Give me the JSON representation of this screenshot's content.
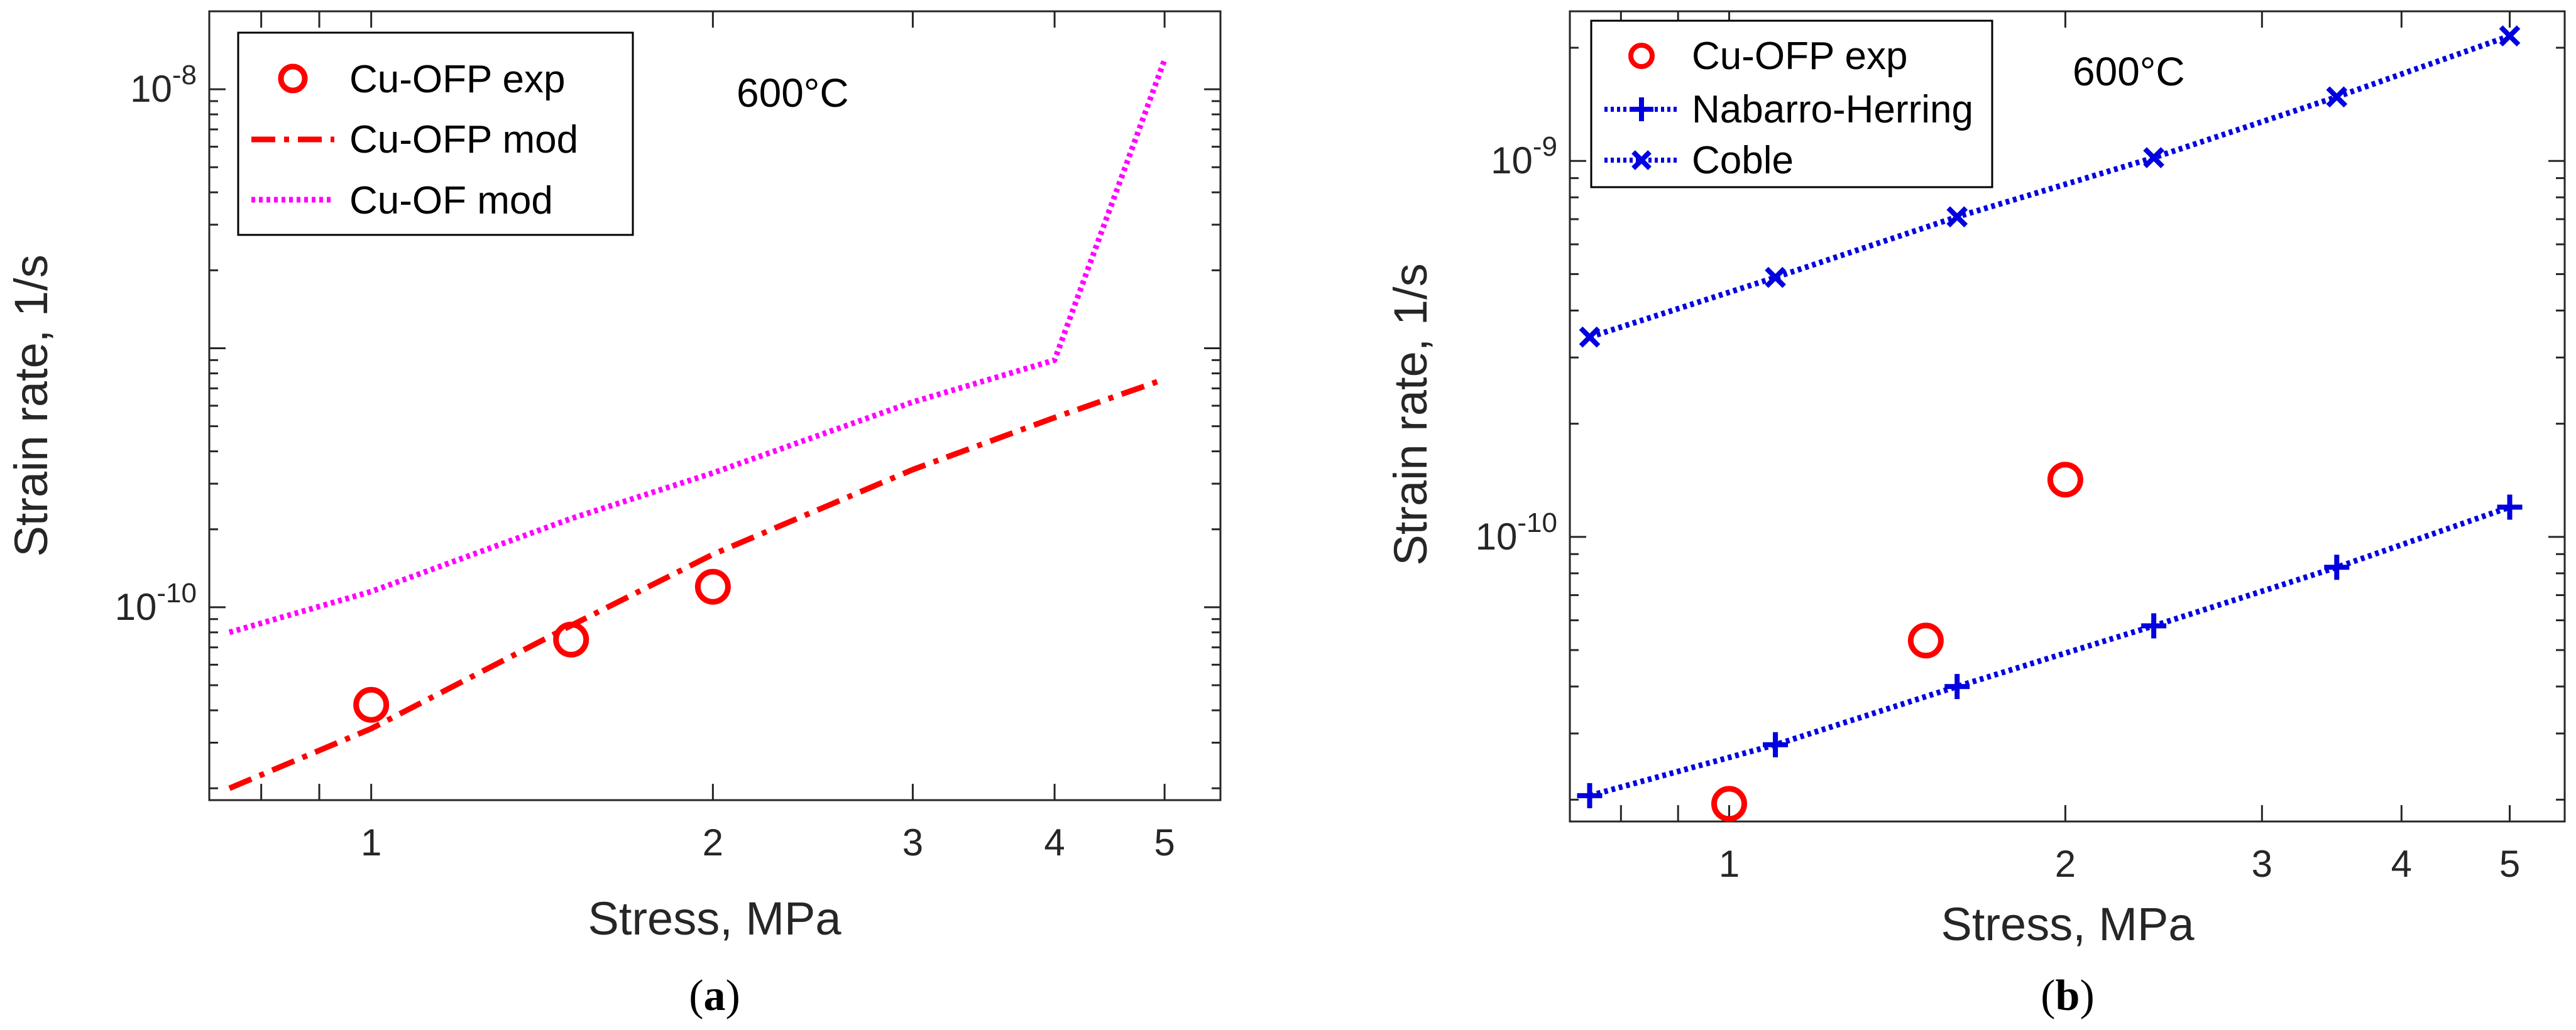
{
  "chart_data": [
    {
      "id": "a",
      "type": "line",
      "panel_label": "a",
      "xscale": "log",
      "yscale": "log",
      "xlim": [
        0.72,
        5.6
      ],
      "ylim": [
        1.8e-11,
        2e-08
      ],
      "xticks": [
        1,
        2,
        3,
        4,
        5
      ],
      "xtick_labels": [
        "1",
        "2",
        "3",
        "4",
        "5"
      ],
      "yticks": [
        1e-10,
        1e-08
      ],
      "ytick_labels": [
        {
          "base": "10",
          "exp": "-10"
        },
        {
          "base": "10",
          "exp": "-8"
        }
      ],
      "xlabel": "Stress, MPa",
      "ylabel": "Strain rate, 1/s",
      "annotation": "600°C",
      "legend_position": "top-left",
      "series": [
        {
          "name": "Cu-OFP exp",
          "style": "circle",
          "color": "#ff0000",
          "x": [
            1.0,
            1.5,
            2.0
          ],
          "y": [
            4.2e-11,
            7.5e-11,
            1.2e-10
          ]
        },
        {
          "name": "Cu-OFP mod",
          "style": "dashdot",
          "color": "#ff0000",
          "x": [
            0.75,
            1.0,
            1.5,
            2.0,
            3.0,
            4.0,
            5.0
          ],
          "y": [
            2e-11,
            3.4e-11,
            8.5e-11,
            1.6e-10,
            3.4e-10,
            5.4e-10,
            7.6e-10
          ]
        },
        {
          "name": "Cu-OF mod",
          "style": "dotted",
          "color": "#ff00ff",
          "x": [
            0.75,
            1.0,
            1.5,
            2.0,
            3.0,
            4.0,
            5.0
          ],
          "y": [
            8e-11,
            1.15e-10,
            2.2e-10,
            3.3e-10,
            6.2e-10,
            9e-10,
            1.3e-08
          ]
        }
      ]
    },
    {
      "id": "b",
      "type": "scatter",
      "panel_label": "b",
      "xscale": "log",
      "yscale": "log",
      "xlim": [
        0.72,
        5.6
      ],
      "ylim": [
        1.75e-11,
        2.5e-09
      ],
      "xticks": [
        1,
        2,
        3,
        4,
        5
      ],
      "xtick_labels": [
        "1",
        "2",
        "3",
        "4",
        "5"
      ],
      "yticks": [
        1e-10,
        1e-09
      ],
      "ytick_labels": [
        {
          "base": "10",
          "exp": "-10"
        },
        {
          "base": "10",
          "exp": "-9"
        }
      ],
      "xlabel": "Stress, MPa",
      "ylabel": "Strain rate, 1/s",
      "annotation": "600°C",
      "legend_position": "top-left",
      "series": [
        {
          "name": "Cu-OFP exp",
          "style": "circle",
          "color": "#ff0000",
          "x": [
            1.0,
            1.5,
            2.0
          ],
          "y": [
            1.95e-11,
            5.3e-11,
            1.42e-10
          ]
        },
        {
          "name": "Nabarro-Herring",
          "style": "plus-dotted",
          "color": "#0000e0",
          "x": [
            0.75,
            1.1,
            1.6,
            2.4,
            3.5,
            5.0
          ],
          "y": [
            2.05e-11,
            2.8e-11,
            4e-11,
            5.8e-11,
            8.3e-11,
            1.2e-10
          ]
        },
        {
          "name": "Coble",
          "style": "cross-dotted",
          "color": "#0000e0",
          "x": [
            0.75,
            1.1,
            1.6,
            2.4,
            3.5,
            5.0
          ],
          "y": [
            3.4e-10,
            4.9e-10,
            7.1e-10,
            1.02e-09,
            1.48e-09,
            2.15e-09
          ]
        }
      ]
    }
  ]
}
